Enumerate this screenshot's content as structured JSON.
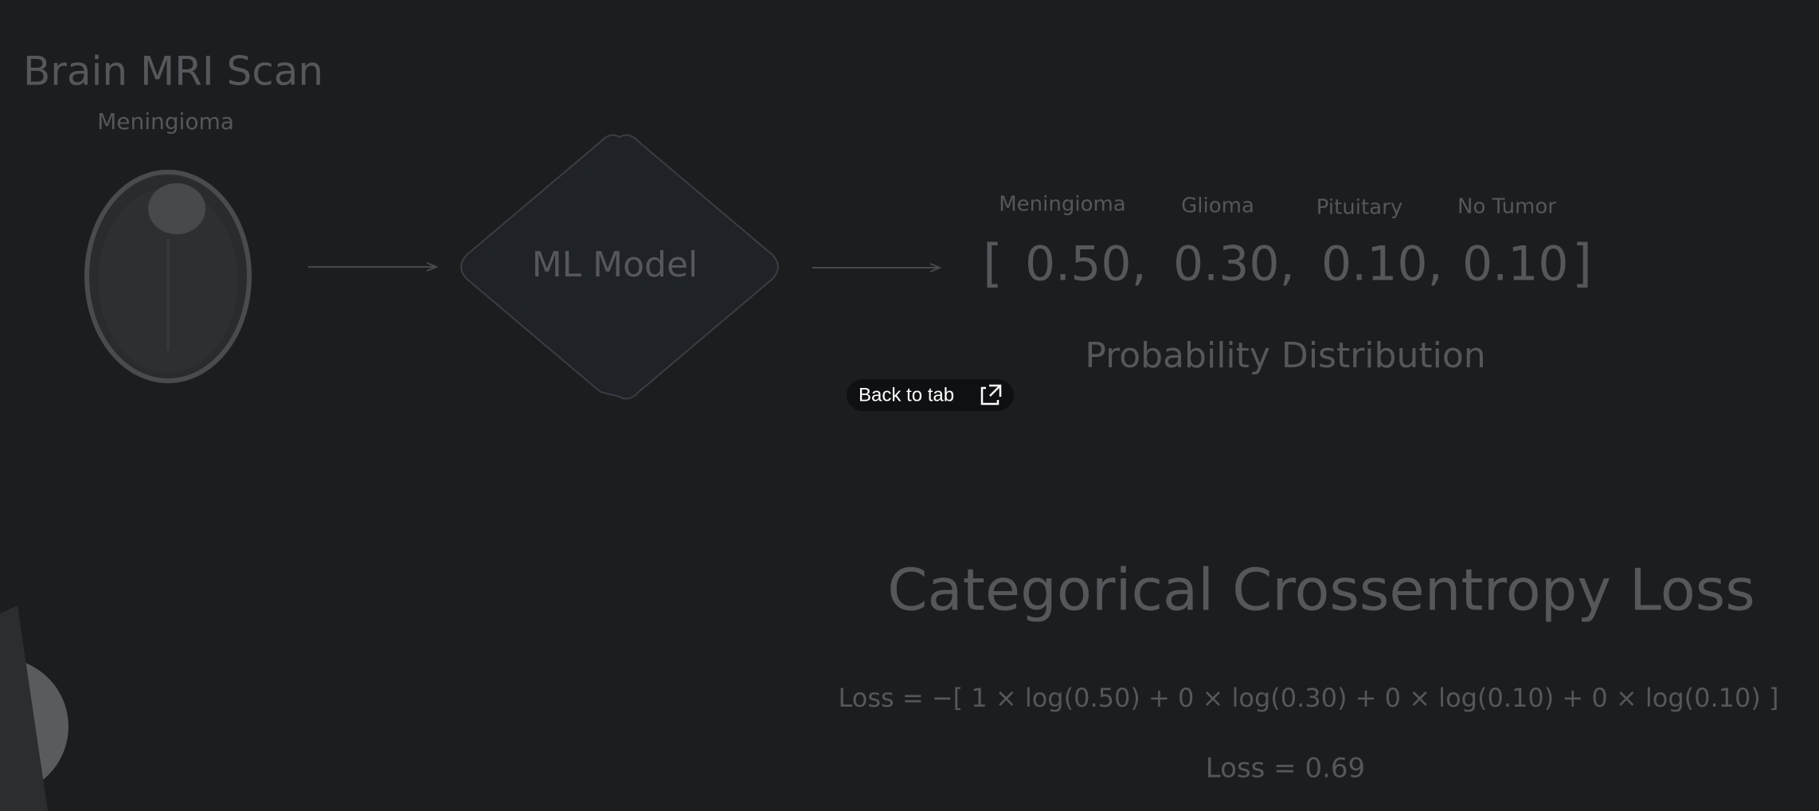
{
  "canvas": {
    "input": {
      "title": "Brain MRI Scan",
      "label": "Meningioma"
    },
    "model": {
      "label": "ML Model"
    },
    "output": {
      "classes": [
        "Meningioma",
        "Glioma",
        "Pituitary",
        "No Tumor"
      ],
      "vector": {
        "open": "[",
        "items": [
          "0.50,",
          "0.30,",
          "0.10,",
          "0.10"
        ],
        "close": "]"
      },
      "caption": "Probability Distribution"
    },
    "loss": {
      "title": "Categorical Crossentropy Loss",
      "formula": "Loss = −[ 1 × log(0.50) + 0 × log(0.30) + 0 × log(0.10) + 0 × log(0.10) ]",
      "result": "Loss = 0.69"
    }
  },
  "overlay": {
    "button": "Back to tab"
  }
}
